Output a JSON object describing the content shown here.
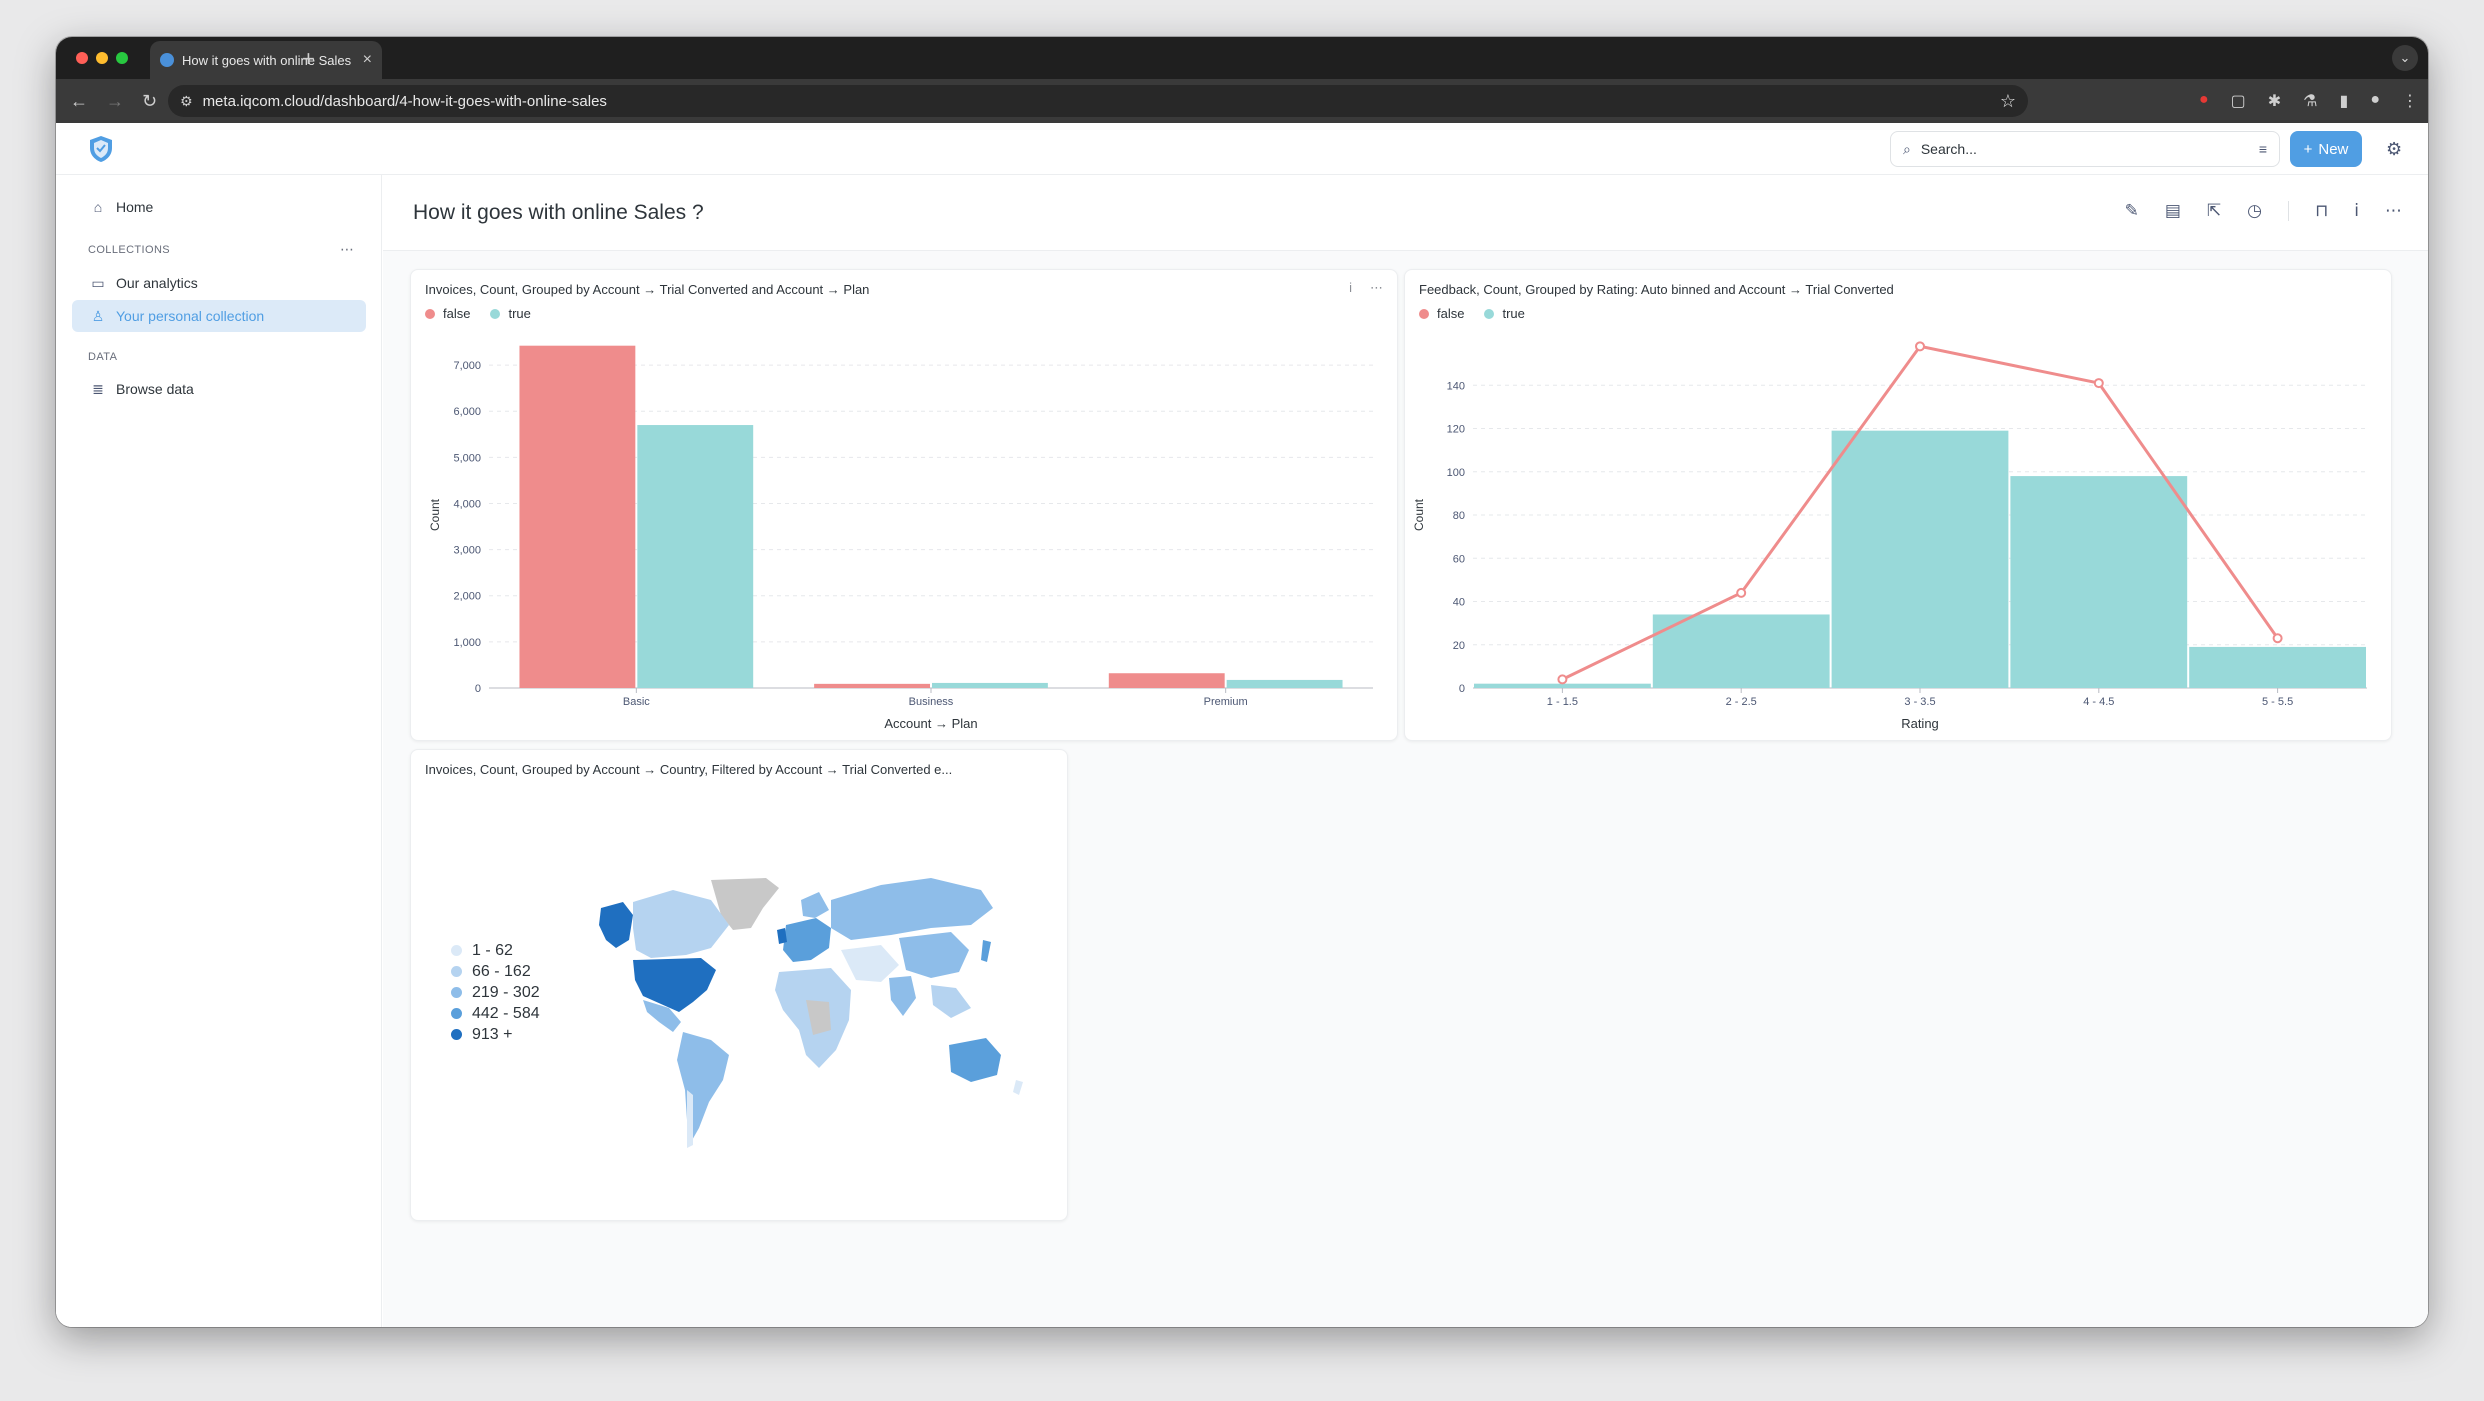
{
  "browser": {
    "tab_title": "How it goes with online Sales ?",
    "url": "meta.iqcom.cloud/dashboard/4-how-it-goes-with-online-sales",
    "new_tab_label": "+"
  },
  "topnav": {
    "search_placeholder": "Search...",
    "new_button_label": "New"
  },
  "sidebar": {
    "home_label": "Home",
    "collections_heading": "COLLECTIONS",
    "collections": [
      {
        "label": "Our analytics",
        "icon": "folder-icon"
      },
      {
        "label": "Your personal collection",
        "icon": "person-icon",
        "active": true
      }
    ],
    "data_heading": "DATA",
    "browse_data_label": "Browse data"
  },
  "dashboard": {
    "title": "How it goes with online Sales ?"
  },
  "cards": [
    {
      "title": "Invoices, Count, Grouped by Account → Trial Converted and Account → Plan",
      "legend": [
        {
          "label": "false",
          "color": "#ef8c8c"
        },
        {
          "label": "true",
          "color": "#98d9d9"
        }
      ],
      "chart_data": {
        "type": "bar",
        "categories": [
          "Basic",
          "Business",
          "Premium"
        ],
        "series": [
          {
            "name": "false",
            "values": [
              7420,
              90,
              320
            ],
            "color": "#ef8c8c"
          },
          {
            "name": "true",
            "values": [
              5700,
              110,
              175
            ],
            "color": "#98d9d9"
          }
        ],
        "xlabel": "Account → Plan",
        "ylabel": "Count",
        "yticks": [
          "0",
          "1,000",
          "2,000",
          "3,000",
          "4,000",
          "5,000",
          "6,000",
          "7,000"
        ],
        "ylim": [
          0,
          7500
        ],
        "grid": true
      }
    },
    {
      "title": "Feedback, Count, Grouped by Rating: Auto binned and Account → Trial Converted",
      "legend": [
        {
          "label": "false",
          "color": "#ef8c8c"
        },
        {
          "label": "true",
          "color": "#98d9d9"
        }
      ],
      "chart_data": {
        "type": "bar",
        "categories": [
          "1 - 1.5",
          "2 - 2.5",
          "3 - 3.5",
          "4 - 4.5",
          "5 - 5.5"
        ],
        "series": [
          {
            "name": "true",
            "type": "bar",
            "values": [
              2,
              34,
              119,
              98,
              19
            ],
            "color": "#98d9d9"
          },
          {
            "name": "false",
            "type": "line",
            "values": [
              4,
              44,
              158,
              141,
              23
            ],
            "color": "#ef8c8c"
          }
        ],
        "xlabel": "Rating",
        "ylabel": "Count",
        "yticks": [
          "0",
          "20",
          "40",
          "60",
          "80",
          "100",
          "120",
          "140"
        ],
        "ylim": [
          0,
          160
        ],
        "grid": true
      }
    },
    {
      "title": "Invoices, Count, Grouped by Account → Country, Filtered by Account → Trial Converted e...",
      "map_legend": [
        {
          "label": "1 - 62",
          "color": "#dbe9f7"
        },
        {
          "label": "66 - 162",
          "color": "#b5d3f0"
        },
        {
          "label": "219 - 302",
          "color": "#8ebde9"
        },
        {
          "label": "442 - 584",
          "color": "#5a9fdb"
        },
        {
          "label": "913 +",
          "color": "#1f6fc0"
        }
      ]
    }
  ]
}
